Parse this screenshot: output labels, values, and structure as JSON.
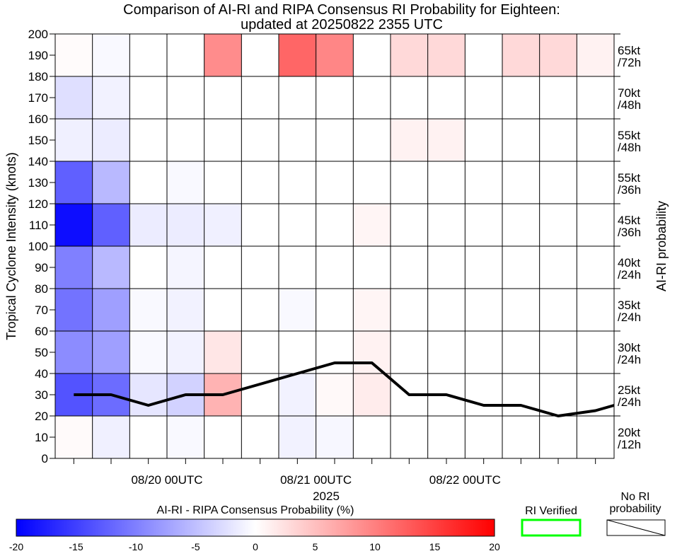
{
  "chart_data": {
    "type": "heatmap",
    "title": "Comparison of AI-RI and RIPA Consensus RI Probability for Eighteen:",
    "subtitle": "updated at 20250822 2355 UTC",
    "ylabel": "Tropical Cyclone Intensity (knots)",
    "y2label": "AI-RI probability",
    "xlabel": "2025",
    "ylim": [
      0,
      200
    ],
    "y_ticks": [
      0,
      10,
      20,
      30,
      40,
      50,
      60,
      70,
      80,
      90,
      100,
      110,
      120,
      130,
      140,
      150,
      160,
      170,
      180,
      190,
      200
    ],
    "x_tick_labels": [
      "08/20 00UTC",
      "08/21 00UTC",
      "08/22 00UTC"
    ],
    "x_tick_label_columns": [
      3,
      7,
      11
    ],
    "row_labels": [
      [
        "20kt",
        "/12h"
      ],
      [
        "25kt",
        "/24h"
      ],
      [
        "30kt",
        "/24h"
      ],
      [
        "35kt",
        "/24h"
      ],
      [
        "40kt",
        "/24h"
      ],
      [
        "45kt",
        "/36h"
      ],
      [
        "55kt",
        "/36h"
      ],
      [
        "55kt",
        "/48h"
      ],
      [
        "70kt",
        "/48h"
      ],
      [
        "65kt",
        "/72h"
      ]
    ],
    "rows_y_ranges": [
      [
        0,
        20
      ],
      [
        20,
        40
      ],
      [
        40,
        60
      ],
      [
        60,
        80
      ],
      [
        80,
        100
      ],
      [
        100,
        120
      ],
      [
        120,
        140
      ],
      [
        140,
        160
      ],
      [
        160,
        180
      ],
      [
        180,
        200
      ]
    ],
    "columns": 15,
    "cell_values": [
      [
        0.4,
        -1.2,
        0,
        -0.5,
        0,
        0,
        -1.0,
        -0.6,
        0,
        0,
        0,
        0,
        0,
        0,
        0
      ],
      [
        -13.5,
        -11.5,
        -2.0,
        -3.5,
        6.0,
        0,
        -1.0,
        0.5,
        1.5,
        0,
        0,
        0,
        0,
        0,
        0
      ],
      [
        -9.0,
        -7.5,
        -0.5,
        -1.0,
        2.0,
        0,
        0,
        0,
        1.0,
        0,
        0,
        0,
        0,
        0,
        0
      ],
      [
        -11.0,
        -7.5,
        -0.5,
        -1.0,
        0,
        0,
        -0.5,
        0,
        0.8,
        0,
        0,
        0,
        0,
        0,
        0
      ],
      [
        -10.0,
        -5.5,
        0,
        -0.8,
        0,
        0,
        0,
        0,
        0,
        0,
        0,
        0,
        0,
        0,
        0
      ],
      [
        -19.0,
        -12.5,
        -1.5,
        -1.5,
        -1.2,
        0,
        0,
        0,
        0.8,
        0,
        0,
        0,
        0,
        0,
        0
      ],
      [
        -12.5,
        -5.5,
        0,
        -0.5,
        0,
        0,
        0,
        0,
        0,
        0,
        0,
        0,
        0,
        0,
        0
      ],
      [
        -1.2,
        -1.5,
        0,
        0,
        0,
        0,
        0,
        0,
        0,
        1.0,
        1.0,
        0,
        0,
        0,
        0
      ],
      [
        -2.5,
        -1.0,
        0,
        0,
        0,
        0,
        0,
        0,
        0,
        0,
        0,
        0,
        0,
        0,
        0
      ],
      [
        0.3,
        -0.5,
        0,
        0,
        9.0,
        0,
        12.0,
        9.5,
        0,
        3.0,
        3.0,
        0,
        3.0,
        3.0,
        1.0
      ]
    ],
    "intensity_track": {
      "x": [
        0.5,
        1.5,
        2.5,
        3.5,
        4.5,
        5.5,
        6.5,
        7.5,
        8.5,
        9.5,
        10.5,
        11.5,
        12.5,
        13.5,
        14.5,
        15.0
      ],
      "y": [
        30,
        30,
        25,
        30,
        30,
        35,
        40,
        45,
        45,
        30,
        30,
        25,
        25,
        20,
        22.5,
        25
      ]
    },
    "colorbar": {
      "label": "AI-RI - RIPA Consensus Probability (%)",
      "range": [
        -20,
        20
      ],
      "ticks": [
        "-20",
        "-15",
        "-10",
        "-5",
        "0",
        "5",
        "10",
        "15",
        "20"
      ],
      "min_color": "#0000ff",
      "mid_color": "#ffffff",
      "max_color": "#ff0000"
    },
    "legend": [
      {
        "label": "RI Verified",
        "color": "#00ff00"
      },
      {
        "label_line1": "No RI",
        "label_line2": "probability",
        "color": "#000000"
      }
    ]
  }
}
